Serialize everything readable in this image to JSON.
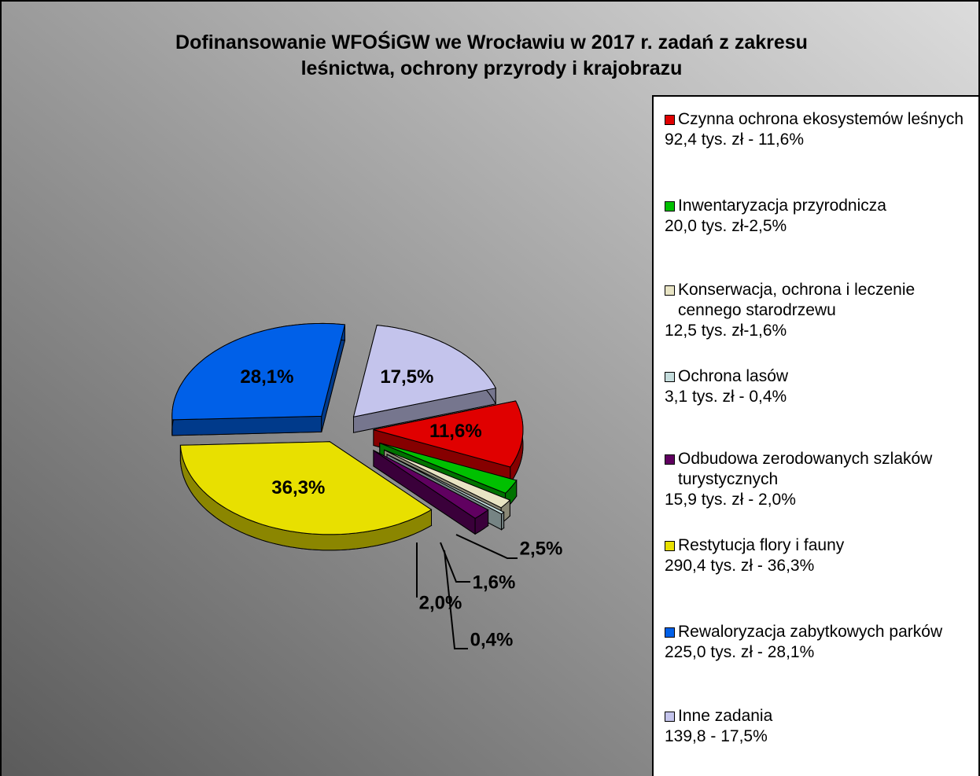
{
  "chart_data": {
    "type": "pie",
    "title": "Dofinansowanie WFOŚiGW we Wrocławiu w 2017 r. zadań z zakresu leśnictwa, ochrony przyrody i krajobrazu",
    "categories": [
      "Czynna ochrona ekosystemów leśnych",
      "Inwentaryzacja przyrodnicza",
      "Konserwacja, ochrona i leczenie cennego starodrzewu",
      "Ochrona lasów",
      "Odbudowa zerodowanych szlaków turystycznych",
      "Restytucja flory i fauny",
      "Rewaloryzacja zabytkowych parków",
      "Inne zadania"
    ],
    "legend_details": [
      "92,4 tys. zł - 11,6%",
      "20,0 tys. zł-2,5%",
      "12,5 tys. zł-1,6%",
      "3,1 tys. zł - 0,4%",
      "15,9 tys. zł - 2,0%",
      "290,4 tys. zł - 36,3%",
      "225,0 tys. zł - 28,1%",
      "139,8 - 17,5%"
    ],
    "values": [
      11.6,
      2.5,
      1.6,
      0.4,
      2.0,
      36.3,
      28.1,
      17.5
    ],
    "value_labels": [
      "11,6%",
      "2,5%",
      "1,6%",
      "0,4%",
      "2,0%",
      "36,3%",
      "28,1%",
      "17,5%"
    ],
    "colors": [
      "#e00000",
      "#00c000",
      "#e8e4c4",
      "#c4dcdc",
      "#600060",
      "#e8e000",
      "#0060e8",
      "#c4c4ec"
    ],
    "legend": "right"
  }
}
